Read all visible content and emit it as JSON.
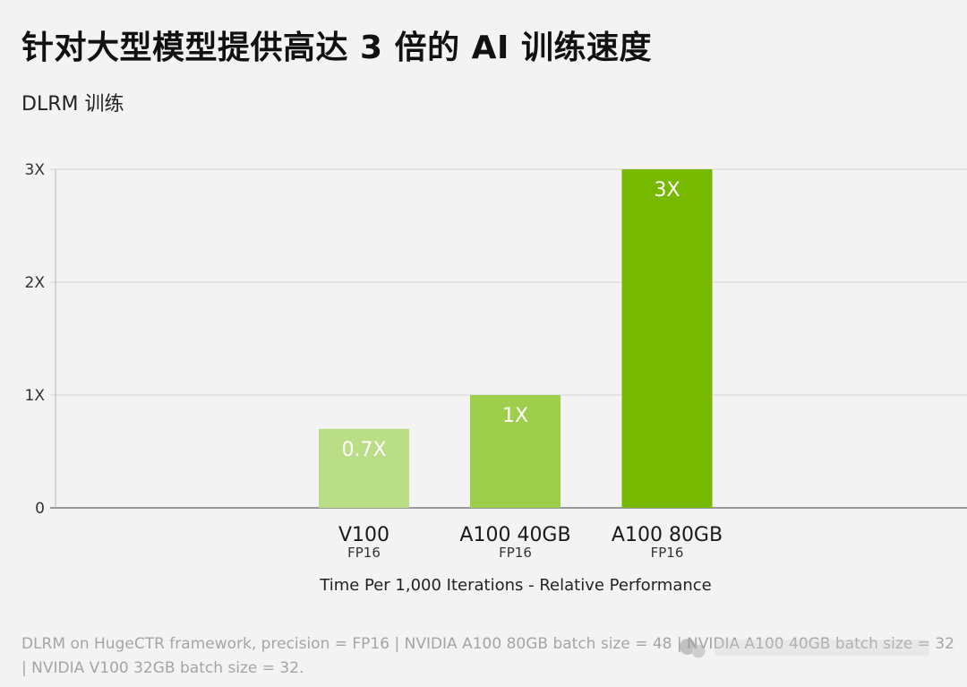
{
  "title": "针对大型模型提供高达 3 倍的 AI 训练速度",
  "subtitle": "DLRM 训练",
  "chart_data": {
    "type": "bar",
    "title": "针对大型模型提供高达 3 倍的 AI 训练速度",
    "subtitle": "DLRM 训练",
    "categories": [
      "V100",
      "A100 40GB",
      "A100 80GB"
    ],
    "category_sublabels": [
      "FP16",
      "FP16",
      "FP16"
    ],
    "values": [
      0.7,
      1,
      3
    ],
    "data_labels": [
      "0.7X",
      "1X",
      "3X"
    ],
    "bar_colors": [
      "#b9de85",
      "#9fce4d",
      "#76b900"
    ],
    "y_ticks": [
      0,
      1,
      2,
      3
    ],
    "y_tick_labels": [
      "0",
      "1X",
      "2X",
      "3X"
    ],
    "ylim": [
      0,
      3
    ],
    "xlabel": "Time Per 1,000 Iterations - Relative Performance",
    "ylabel": "",
    "grid": true,
    "legend": "none"
  },
  "footnote": "DLRM on HugeCTR framework, precision = FP16 | NVIDIA A100 80GB batch size = 48 | NVIDIA A100 40GB batch size = 32 | NVIDIA V100 32GB batch size = 32."
}
